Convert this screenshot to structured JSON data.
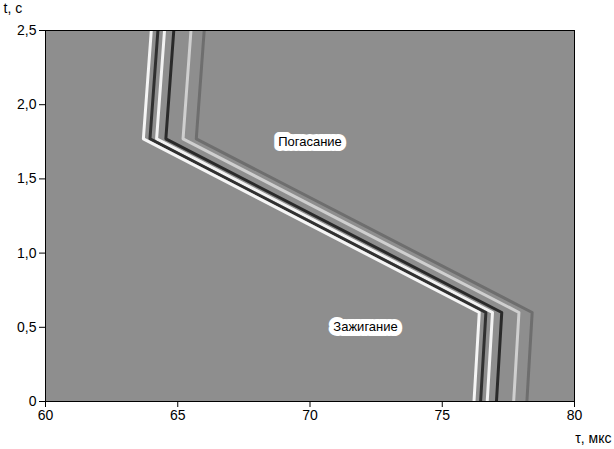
{
  "chart_data": {
    "type": "line",
    "x_label": "τ, мкс",
    "y_label": "t, с",
    "xlim": [
      60,
      80
    ],
    "xticks": [
      60,
      65,
      70,
      75,
      80
    ],
    "ylim": [
      0,
      2.5
    ],
    "yticks": [
      0,
      {
        "value": 0.5,
        "label": "0,5"
      },
      {
        "value": 1.0,
        "label": "1,0"
      },
      {
        "value": 1.5,
        "label": "1,5"
      },
      {
        "value": 2.0,
        "label": "2,0"
      },
      {
        "value": 2.5,
        "label": "2,5"
      }
    ],
    "grid": false,
    "series": [
      {
        "color": "#6e6e6e",
        "x": [
          78.2,
          78.4,
          65.7,
          66.0
        ],
        "y": [
          0,
          0.6,
          1.77,
          2.5
        ]
      },
      {
        "color": "#cfcfcf",
        "x": [
          77.7,
          77.9,
          65.2,
          65.5
        ],
        "y": [
          0,
          0.6,
          1.77,
          2.5
        ]
      },
      {
        "color": "#2a2a2a",
        "x": [
          77.05,
          77.25,
          64.55,
          64.85
        ],
        "y": [
          0,
          0.6,
          1.77,
          2.5
        ]
      },
      {
        "color": "#f2f2f2",
        "x": [
          76.7,
          76.9,
          64.2,
          64.5
        ],
        "y": [
          0,
          0.6,
          1.77,
          2.5
        ]
      },
      {
        "color": "#303030",
        "x": [
          76.45,
          76.65,
          63.95,
          64.25
        ],
        "y": [
          0,
          0.6,
          1.77,
          2.5
        ]
      },
      {
        "color": "#f5f5f5",
        "x": [
          76.2,
          76.4,
          63.7,
          64.0
        ],
        "y": [
          0,
          0.6,
          1.77,
          2.5
        ]
      }
    ],
    "annotations": [
      {
        "text": "Погасание",
        "x": 70.0,
        "y": 1.75
      },
      {
        "text": "Зажигание",
        "x": 72.1,
        "y": 0.5
      }
    ]
  }
}
